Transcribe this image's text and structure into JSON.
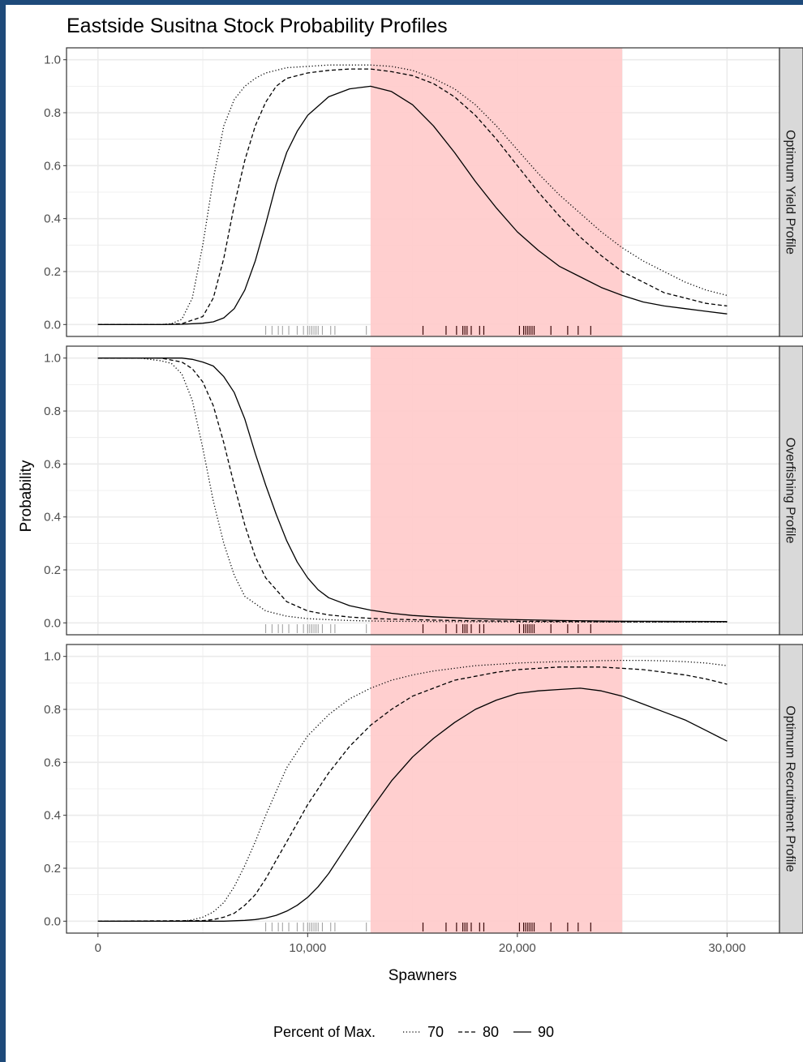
{
  "chart_data": {
    "type": "line",
    "title": "Eastside Susitna Stock Probability Profiles",
    "xlabel": "Spawners",
    "ylabel": "Probability",
    "xlim": [
      0,
      30000
    ],
    "ylim": [
      0,
      1
    ],
    "x_ticks": [
      0,
      10000,
      20000,
      30000
    ],
    "x_tick_labels": [
      "0",
      "10,000",
      "20,000",
      "30,000"
    ],
    "y_ticks": [
      0,
      0.2,
      0.4,
      0.6,
      0.8,
      1.0
    ],
    "y_tick_labels": [
      "0.0",
      "0.2",
      "0.4",
      "0.6",
      "0.8",
      "1.0"
    ],
    "grid": true,
    "shaded_region": {
      "x_start": 13000,
      "x_end": 25000,
      "color": "#ffcccc"
    },
    "rug": {
      "gray": [
        8000,
        8300,
        8600,
        8800,
        9100,
        9500,
        9800,
        10000,
        10100,
        10200,
        10300,
        10400,
        10500,
        10700,
        11100,
        11300,
        12800
      ],
      "dark": [
        15500,
        16600,
        17100,
        17400,
        17500,
        17600,
        17800,
        18200,
        18400,
        20100,
        20300,
        20400,
        20500,
        20600,
        20700,
        20800,
        21600,
        22400,
        22900,
        23500
      ]
    },
    "colors": {
      "line": "#000000",
      "shade": "#ffcccc",
      "strip": "#d9d9d9",
      "grid": "#ebebeb",
      "frame": "#333333",
      "background": "#1e4a7a"
    },
    "legend": {
      "title": "Percent of Max.",
      "position": "bottom",
      "entries": [
        {
          "label": "70",
          "dash": "dotted"
        },
        {
          "label": "80",
          "dash": "dashed"
        },
        {
          "label": "90",
          "dash": "solid"
        }
      ]
    },
    "panels": [
      {
        "name": "Optimum Yield Profile",
        "series": [
          {
            "name": "70",
            "x": [
              0,
              2000,
              3000,
              3500,
              4000,
              4500,
              5000,
              5500,
              6000,
              6500,
              7000,
              7500,
              8000,
              9000,
              10000,
              11000,
              12000,
              13000,
              14000,
              15000,
              16000,
              17000,
              18000,
              19000,
              20000,
              21000,
              22000,
              23000,
              24000,
              25000,
              26000,
              27000,
              28000,
              29000,
              30000
            ],
            "y": [
              0,
              0,
              0,
              0.003,
              0.02,
              0.1,
              0.3,
              0.55,
              0.75,
              0.85,
              0.9,
              0.93,
              0.95,
              0.97,
              0.975,
              0.98,
              0.98,
              0.98,
              0.975,
              0.96,
              0.93,
              0.89,
              0.83,
              0.75,
              0.66,
              0.57,
              0.49,
              0.42,
              0.35,
              0.29,
              0.24,
              0.2,
              0.16,
              0.13,
              0.11
            ]
          },
          {
            "name": "80",
            "x": [
              0,
              2000,
              3000,
              4000,
              5000,
              5500,
              6000,
              6500,
              7000,
              7500,
              8000,
              8500,
              9000,
              10000,
              11000,
              12000,
              13000,
              14000,
              15000,
              16000,
              17000,
              18000,
              19000,
              20000,
              21000,
              22000,
              23000,
              24000,
              25000,
              26000,
              27000,
              28000,
              29000,
              30000
            ],
            "y": [
              0,
              0,
              0,
              0.003,
              0.03,
              0.1,
              0.25,
              0.45,
              0.62,
              0.75,
              0.84,
              0.9,
              0.93,
              0.95,
              0.96,
              0.965,
              0.965,
              0.955,
              0.94,
              0.91,
              0.86,
              0.79,
              0.7,
              0.6,
              0.5,
              0.41,
              0.33,
              0.26,
              0.2,
              0.16,
              0.12,
              0.1,
              0.08,
              0.07
            ]
          },
          {
            "name": "90",
            "x": [
              0,
              3000,
              4000,
              5000,
              5500,
              6000,
              6500,
              7000,
              7500,
              8000,
              8500,
              9000,
              9500,
              10000,
              11000,
              12000,
              13000,
              14000,
              15000,
              16000,
              17000,
              18000,
              19000,
              20000,
              21000,
              22000,
              23000,
              24000,
              25000,
              26000,
              27000,
              28000,
              29000,
              30000
            ],
            "y": [
              0,
              0,
              0.001,
              0.005,
              0.01,
              0.025,
              0.06,
              0.13,
              0.24,
              0.38,
              0.53,
              0.65,
              0.73,
              0.79,
              0.86,
              0.89,
              0.9,
              0.88,
              0.83,
              0.75,
              0.65,
              0.54,
              0.44,
              0.35,
              0.28,
              0.22,
              0.18,
              0.14,
              0.11,
              0.085,
              0.07,
              0.06,
              0.05,
              0.04
            ]
          }
        ]
      },
      {
        "name": "Overfishing Profile",
        "series": [
          {
            "name": "70",
            "x": [
              0,
              2000,
              3000,
              3500,
              4000,
              4500,
              5000,
              5500,
              6000,
              6500,
              7000,
              8000,
              9000,
              10000,
              11000,
              12000,
              13000,
              14000,
              16000,
              18000,
              20000,
              22000,
              25000,
              30000
            ],
            "y": [
              1,
              1,
              0.99,
              0.98,
              0.94,
              0.84,
              0.66,
              0.46,
              0.3,
              0.18,
              0.1,
              0.045,
              0.025,
              0.016,
              0.012,
              0.009,
              0.007,
              0.006,
              0.005,
              0.004,
              0.003,
              0.003,
              0.003,
              0.003
            ]
          },
          {
            "name": "80",
            "x": [
              0,
              3000,
              4000,
              4500,
              5000,
              5500,
              6000,
              6500,
              7000,
              7500,
              8000,
              9000,
              10000,
              11000,
              12000,
              13000,
              14000,
              15000,
              17000,
              20000,
              25000,
              30000
            ],
            "y": [
              1,
              1,
              0.985,
              0.96,
              0.91,
              0.82,
              0.68,
              0.52,
              0.37,
              0.25,
              0.17,
              0.08,
              0.045,
              0.03,
              0.022,
              0.017,
              0.014,
              0.012,
              0.009,
              0.006,
              0.004,
              0.004
            ]
          },
          {
            "name": "90",
            "x": [
              0,
              4000,
              4500,
              5000,
              5500,
              6000,
              6500,
              7000,
              7500,
              8000,
              8500,
              9000,
              9500,
              10000,
              10500,
              11000,
              12000,
              13000,
              14000,
              15000,
              16000,
              18000,
              20000,
              22000,
              25000,
              30000
            ],
            "y": [
              1,
              1,
              0.995,
              0.985,
              0.97,
              0.93,
              0.87,
              0.77,
              0.64,
              0.52,
              0.41,
              0.31,
              0.23,
              0.17,
              0.125,
              0.095,
              0.065,
              0.048,
              0.036,
              0.028,
              0.023,
              0.016,
              0.012,
              0.009,
              0.006,
              0.005
            ]
          }
        ]
      },
      {
        "name": "Optimum Recruitment Profile",
        "series": [
          {
            "name": "70",
            "x": [
              0,
              4000,
              4500,
              5000,
              5500,
              6000,
              6500,
              7000,
              7500,
              8000,
              8500,
              9000,
              9500,
              10000,
              11000,
              12000,
              13000,
              14000,
              15000,
              16000,
              17000,
              18000,
              19000,
              20000,
              21000,
              22000,
              23000,
              24000,
              25000,
              26000,
              27000,
              28000,
              29000,
              30000
            ],
            "y": [
              0,
              0,
              0.005,
              0.015,
              0.035,
              0.07,
              0.13,
              0.21,
              0.3,
              0.4,
              0.49,
              0.58,
              0.64,
              0.7,
              0.78,
              0.84,
              0.88,
              0.91,
              0.93,
              0.945,
              0.955,
              0.965,
              0.97,
              0.975,
              0.978,
              0.98,
              0.982,
              0.984,
              0.985,
              0.985,
              0.983,
              0.98,
              0.975,
              0.965
            ]
          },
          {
            "name": "80",
            "x": [
              0,
              5000,
              5500,
              6000,
              6500,
              7000,
              7500,
              8000,
              8500,
              9000,
              9500,
              10000,
              11000,
              12000,
              13000,
              14000,
              15000,
              16000,
              17000,
              18000,
              19000,
              20000,
              21000,
              22000,
              23000,
              24000,
              25000,
              26000,
              27000,
              28000,
              29000,
              30000
            ],
            "y": [
              0,
              0.002,
              0.006,
              0.015,
              0.03,
              0.06,
              0.1,
              0.16,
              0.23,
              0.3,
              0.37,
              0.44,
              0.56,
              0.66,
              0.74,
              0.8,
              0.85,
              0.88,
              0.91,
              0.925,
              0.94,
              0.95,
              0.955,
              0.96,
              0.96,
              0.96,
              0.955,
              0.95,
              0.94,
              0.93,
              0.915,
              0.895
            ]
          },
          {
            "name": "90",
            "x": [
              0,
              6000,
              7000,
              7500,
              8000,
              8500,
              9000,
              9500,
              10000,
              10500,
              11000,
              12000,
              13000,
              14000,
              15000,
              16000,
              17000,
              18000,
              19000,
              20000,
              21000,
              22000,
              23000,
              24000,
              25000,
              26000,
              27000,
              28000,
              29000,
              30000
            ],
            "y": [
              0,
              0,
              0.003,
              0.006,
              0.012,
              0.022,
              0.038,
              0.06,
              0.09,
              0.13,
              0.18,
              0.3,
              0.42,
              0.53,
              0.62,
              0.69,
              0.75,
              0.8,
              0.835,
              0.86,
              0.87,
              0.875,
              0.88,
              0.87,
              0.85,
              0.82,
              0.79,
              0.76,
              0.72,
              0.68
            ]
          }
        ]
      }
    ]
  }
}
